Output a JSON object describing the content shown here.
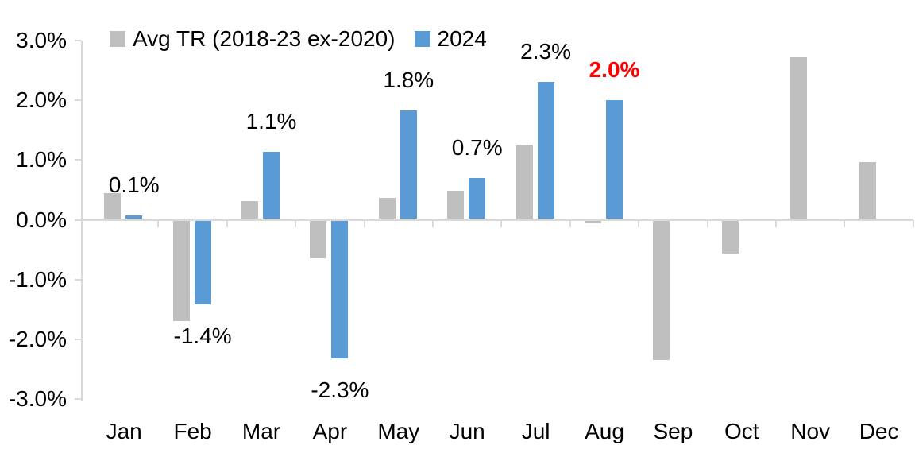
{
  "colors": {
    "series_avg": "#BFBFBF",
    "series_2024": "#5B9BD5",
    "axis_line": "#D9D9D9",
    "label_default": "#000000",
    "label_highlight": "#FF0000",
    "background": "#FFFFFF"
  },
  "legend": {
    "items": [
      {
        "label": "Avg TR (2018-23 ex-2020)",
        "color": "#BFBFBF"
      },
      {
        "label": "2024",
        "color": "#5B9BD5"
      }
    ]
  },
  "chart_data": {
    "type": "bar",
    "title": "",
    "categories": [
      "Jan",
      "Feb",
      "Mar",
      "Apr",
      "May",
      "Jun",
      "Jul",
      "Aug",
      "Sep",
      "Oct",
      "Nov",
      "Dec"
    ],
    "series": [
      {
        "name": "Avg TR (2018-23 ex-2020)",
        "color": "#BFBFBF",
        "values": [
          0.44,
          -1.7,
          0.3,
          -0.65,
          0.36,
          0.48,
          1.25,
          -0.07,
          -2.35,
          -0.57,
          2.71,
          0.96
        ]
      },
      {
        "name": "2024",
        "color": "#5B9BD5",
        "values": [
          0.06,
          -1.42,
          1.13,
          -2.33,
          1.82,
          0.69,
          2.3,
          2.0,
          null,
          null,
          null,
          null
        ]
      }
    ],
    "data_labels": [
      {
        "category": "Jan",
        "text": "0.1%",
        "color": "#000000",
        "bold": false
      },
      {
        "category": "Feb",
        "text": "-1.4%",
        "color": "#000000",
        "bold": false
      },
      {
        "category": "Mar",
        "text": "1.1%",
        "color": "#000000",
        "bold": false
      },
      {
        "category": "Apr",
        "text": "-2.3%",
        "color": "#000000",
        "bold": false
      },
      {
        "category": "May",
        "text": "1.8%",
        "color": "#000000",
        "bold": false
      },
      {
        "category": "Jun",
        "text": "0.7%",
        "color": "#000000",
        "bold": false
      },
      {
        "category": "Jul",
        "text": "2.3%",
        "color": "#000000",
        "bold": false
      },
      {
        "category": "Aug",
        "text": "2.0%",
        "color": "#FF0000",
        "bold": true
      }
    ],
    "y_axis": {
      "min": -3.0,
      "max": 3.0,
      "unit": "%",
      "tick_labels": [
        "3.0%",
        "2.0%",
        "1.0%",
        "0.0%",
        "-1.0%",
        "-2.0%",
        "-3.0%"
      ]
    },
    "grid": false,
    "legend_position": "top"
  }
}
